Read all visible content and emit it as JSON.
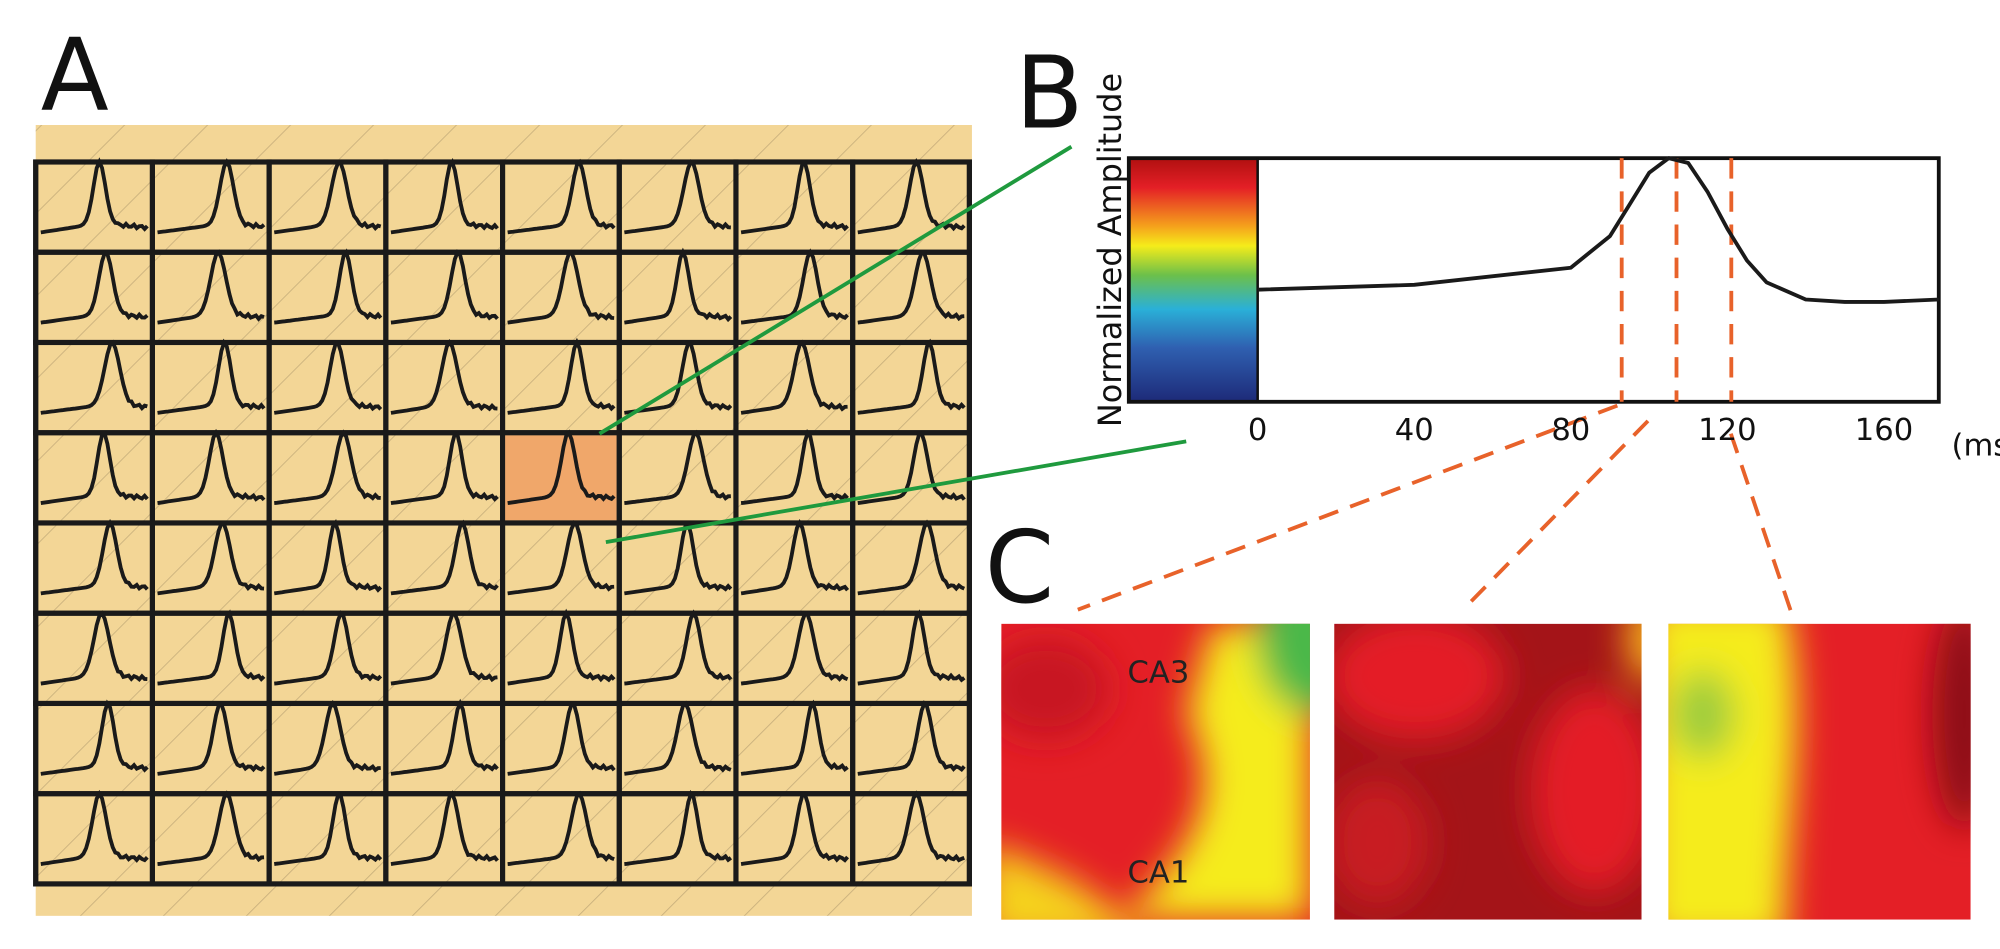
{
  "panel_labels": [
    "A",
    "B",
    "C"
  ],
  "region_labels": [
    "CA3",
    "CA1"
  ],
  "chart_data": {
    "type": "line",
    "ylabel": "Normalized Amplitude",
    "x_unit": "(ms)",
    "x": [
      0,
      40,
      80,
      90,
      95,
      100,
      105,
      110,
      115,
      120,
      125,
      130,
      140,
      150,
      160,
      174
    ],
    "values": [
      0.46,
      0.48,
      0.55,
      0.68,
      0.81,
      0.94,
      1.0,
      0.98,
      0.86,
      0.71,
      0.58,
      0.49,
      0.42,
      0.41,
      0.41,
      0.42
    ],
    "color": "#1a1a1a",
    "xlim": [
      0,
      174
    ],
    "ylim": [
      0,
      1
    ],
    "xticks": [
      0,
      40,
      80,
      120,
      160
    ],
    "markers": [
      93,
      107,
      121
    ],
    "marker_color": "#e8622a"
  }
}
